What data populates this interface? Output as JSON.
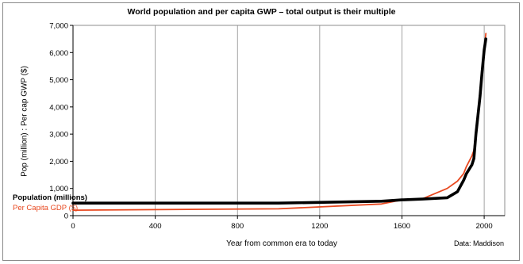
{
  "chart_data": {
    "type": "line",
    "title": "World population and per capita GWP – total output is their multiple",
    "xlabel": "Year from common era to today",
    "ylabel": "Pop (million) : Per cap GWP ($)",
    "source": "Data: Maddison",
    "xlim": [
      0,
      2100
    ],
    "ylim": [
      0,
      7000
    ],
    "x_ticks": [
      0,
      400,
      800,
      1200,
      1600,
      2000
    ],
    "y_ticks": [
      0,
      1000,
      2000,
      3000,
      4000,
      5000,
      6000,
      7000
    ],
    "x_tick_labels": [
      "0",
      "400",
      "800",
      "1200",
      "1600",
      "2000"
    ],
    "y_tick_labels": [
      "0",
      "1,000",
      "2,000",
      "3,000",
      "4,000",
      "5,000",
      "6,000",
      "7,000"
    ],
    "grid": "vertical",
    "legend_position": "left",
    "colors": {
      "population": "#000000",
      "gdp": "#e8481f",
      "grid": "#8c8c8c"
    },
    "series": [
      {
        "name": "Population (millions)",
        "x": [
          0,
          1000,
          1500,
          1600,
          1700,
          1820,
          1870,
          1900,
          1913,
          1940,
          1950,
          1960,
          1970,
          1980,
          1990,
          2000,
          2008
        ],
        "y": [
          460,
          460,
          530,
          580,
          610,
          660,
          880,
          1300,
          1540,
          1870,
          2100,
          3000,
          3700,
          4400,
          5300,
          6100,
          6500
        ]
      },
      {
        "name": "Per Capita GDP ($)",
        "x": [
          0,
          1000,
          1500,
          1600,
          1700,
          1820,
          1870,
          1900,
          1913,
          1940,
          1950,
          1960,
          1970,
          1980,
          1990,
          2000,
          2008
        ],
        "y": [
          200,
          250,
          430,
          580,
          620,
          1000,
          1270,
          1550,
          1800,
          2200,
          2400,
          3100,
          3800,
          4500,
          5200,
          6100,
          6700
        ]
      }
    ]
  }
}
